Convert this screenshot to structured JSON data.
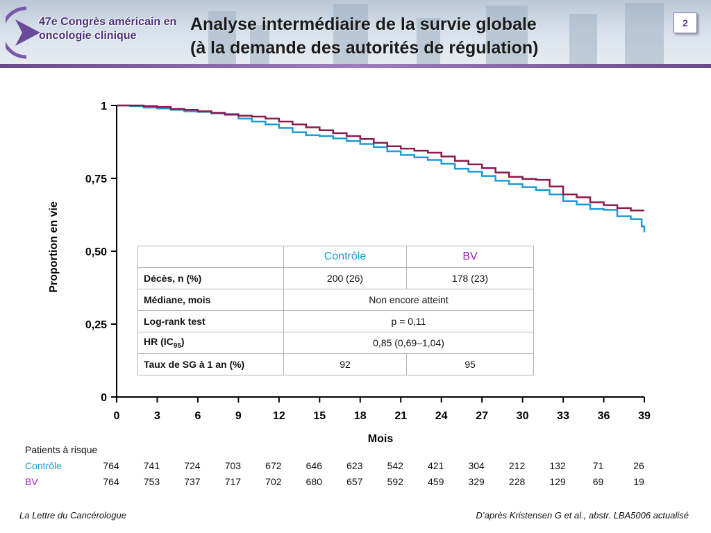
{
  "header": {
    "logo_line1": "47e Congrès américain en",
    "logo_line2": "oncologie clinique",
    "title_line1": "Analyse intermédiaire de la survie globale",
    "title_line2": "(à la demande des autorités de régulation)",
    "slide_number": "2"
  },
  "colors": {
    "controle": "#1a9bd7",
    "bv": "#8b1a4a",
    "bv_label": "#a020c0",
    "accent": "#5a3a8a"
  },
  "chart_data": {
    "type": "line",
    "title": "",
    "xlabel": "Mois",
    "ylabel": "Proportion en vie",
    "xlim": [
      0,
      39
    ],
    "ylim": [
      0,
      1
    ],
    "x_ticks": [
      0,
      3,
      6,
      9,
      12,
      15,
      18,
      21,
      24,
      27,
      30,
      33,
      36,
      39
    ],
    "y_ticks": [
      {
        "value": 0,
        "label": "0"
      },
      {
        "value": 0.25,
        "label": "0,25"
      },
      {
        "value": 0.5,
        "label": "0,50"
      },
      {
        "value": 0.75,
        "label": "0,75"
      },
      {
        "value": 1,
        "label": "1"
      }
    ],
    "grid": false,
    "series": [
      {
        "name": "Contrôle",
        "color": "#1a9bd7",
        "x": [
          0,
          1,
          2,
          3,
          4,
          5,
          6,
          7,
          8,
          9,
          10,
          11,
          12,
          13,
          14,
          15,
          16,
          17,
          18,
          19,
          20,
          21,
          22,
          23,
          24,
          25,
          26,
          27,
          28,
          29,
          30,
          31,
          32,
          33,
          34,
          35,
          36,
          37,
          38,
          38.8,
          39
        ],
        "y": [
          1.0,
          0.998,
          0.993,
          0.99,
          0.985,
          0.98,
          0.978,
          0.973,
          0.968,
          0.955,
          0.945,
          0.935,
          0.923,
          0.908,
          0.898,
          0.895,
          0.887,
          0.878,
          0.868,
          0.857,
          0.843,
          0.83,
          0.822,
          0.813,
          0.8,
          0.783,
          0.773,
          0.758,
          0.742,
          0.73,
          0.72,
          0.71,
          0.695,
          0.672,
          0.66,
          0.645,
          0.642,
          0.62,
          0.61,
          0.585,
          0.565
        ]
      },
      {
        "name": "BV",
        "color": "#8b1a4a",
        "x": [
          0,
          1,
          2,
          3,
          4,
          5,
          6,
          7,
          8,
          9,
          10,
          11,
          12,
          13,
          14,
          15,
          16,
          17,
          18,
          19,
          20,
          21,
          22,
          23,
          24,
          25,
          26,
          27,
          28,
          29,
          30,
          31,
          32,
          33,
          34,
          35,
          36,
          37,
          38,
          39
        ],
        "y": [
          1.0,
          1.0,
          0.998,
          0.995,
          0.988,
          0.985,
          0.98,
          0.975,
          0.97,
          0.965,
          0.962,
          0.955,
          0.945,
          0.935,
          0.925,
          0.915,
          0.905,
          0.895,
          0.885,
          0.872,
          0.86,
          0.852,
          0.845,
          0.838,
          0.825,
          0.81,
          0.798,
          0.785,
          0.77,
          0.755,
          0.748,
          0.745,
          0.722,
          0.695,
          0.685,
          0.668,
          0.658,
          0.648,
          0.64,
          0.64
        ]
      }
    ]
  },
  "stats_table": {
    "headers": [
      "",
      "Contrôle",
      "BV"
    ],
    "rows": [
      {
        "label": "Décès, n (%)",
        "controle": "200 (26)",
        "bv": "178 (23)"
      },
      {
        "label": "Médiane, mois",
        "merged": "Non encore atteint"
      },
      {
        "label": "Log-rank test",
        "merged": "p = 0,11"
      },
      {
        "label_main": "HR (IC",
        "label_sub": "95",
        "label_end": ")",
        "merged": "0,85 (0,69–1,04)"
      },
      {
        "label": "Taux de SG à 1 an (%)",
        "controle": "92",
        "bv": "95"
      }
    ]
  },
  "at_risk": {
    "title": "Patients à risque",
    "controle_label": "Contrôle",
    "bv_label": "BV",
    "controle": [
      "764",
      "741",
      "724",
      "703",
      "672",
      "646",
      "623",
      "542",
      "421",
      "304",
      "212",
      "132",
      "71",
      "26"
    ],
    "bv": [
      "764",
      "753",
      "737",
      "717",
      "702",
      "680",
      "657",
      "592",
      "459",
      "329",
      "228",
      "129",
      "69",
      "19"
    ]
  },
  "footer": {
    "left": "La Lettre du Cancérologue",
    "right": "D’après Kristensen G et al., abstr. LBA5006 actualisé"
  }
}
